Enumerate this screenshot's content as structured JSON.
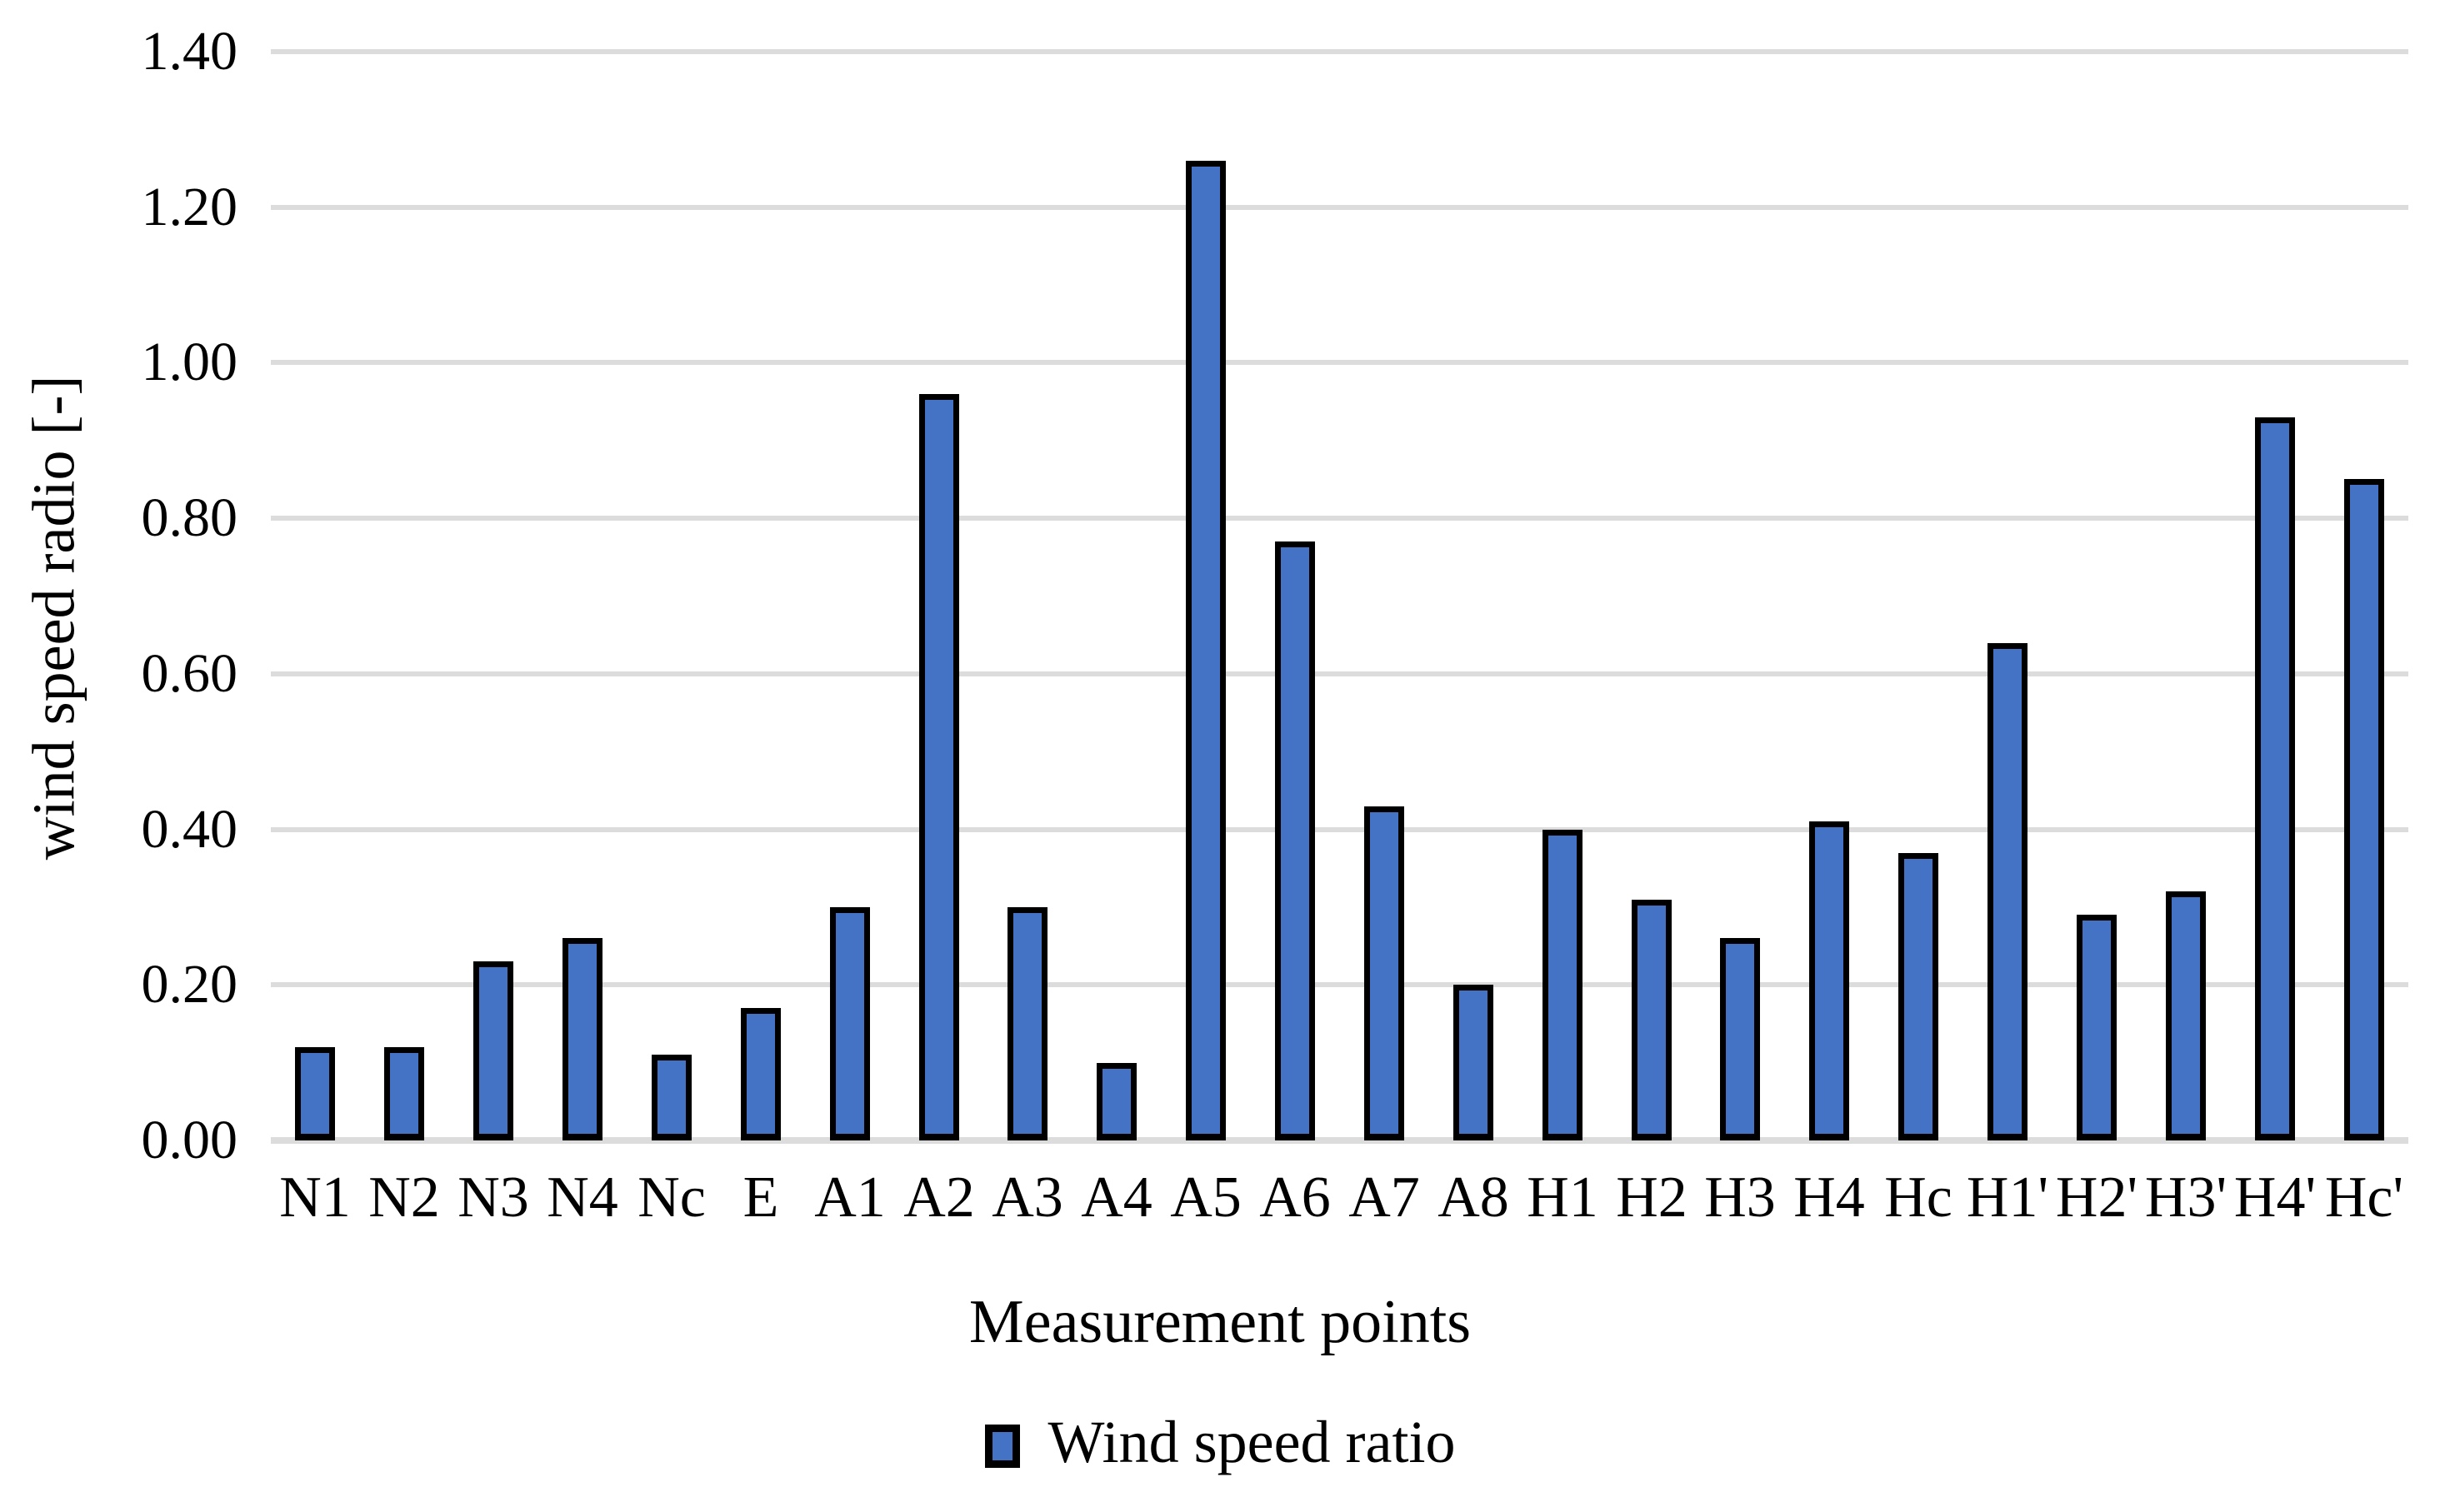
{
  "chart_data": {
    "type": "bar",
    "categories": [
      "N1",
      "N2",
      "N3",
      "N4",
      "Nc",
      "E",
      "A1",
      "A2",
      "A3",
      "A4",
      "A5",
      "A6",
      "A7",
      "A8",
      "H1",
      "H2",
      "H3",
      "H4",
      "Hc",
      "H1'",
      "H2'",
      "H3'",
      "H4'",
      "Hc'"
    ],
    "values": [
      0.12,
      0.12,
      0.23,
      0.26,
      0.11,
      0.17,
      0.3,
      0.96,
      0.3,
      0.1,
      1.26,
      0.77,
      0.43,
      0.2,
      0.4,
      0.31,
      0.26,
      0.41,
      0.37,
      0.64,
      0.29,
      0.32,
      0.93,
      0.85
    ],
    "title": "",
    "xlabel": "Measurement points",
    "ylabel": "wind speed radio [-]",
    "ylim": [
      0.0,
      1.4
    ],
    "ytick_step": 0.2,
    "ytick_labels": [
      "0.00",
      "0.20",
      "0.40",
      "0.60",
      "0.80",
      "1.00",
      "1.20",
      "1.40"
    ],
    "grid": true,
    "legend": {
      "position": "bottom",
      "entries": [
        {
          "label": "Wind speed ratio",
          "swatch_fill": "#4472C4",
          "swatch_border": "#000000"
        }
      ]
    },
    "colors": {
      "bar_fill": "#4472C4",
      "bar_border": "#000000",
      "gridline": "#DCDCDC",
      "text": "#000000",
      "background": "#FFFFFF"
    }
  }
}
